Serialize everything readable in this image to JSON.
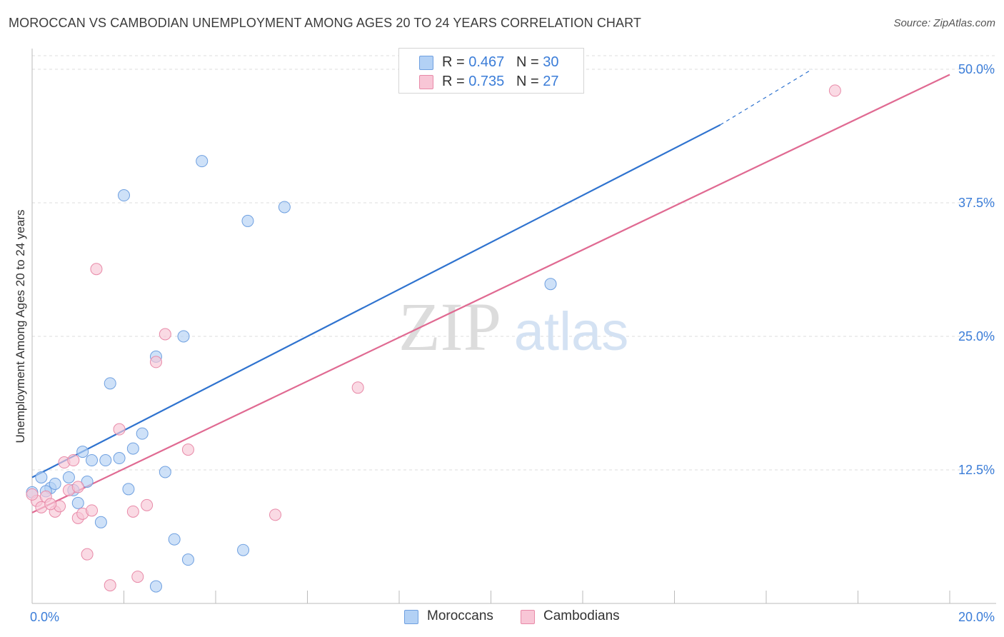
{
  "header": {
    "title": "MOROCCAN VS CAMBODIAN UNEMPLOYMENT AMONG AGES 20 TO 24 YEARS CORRELATION CHART",
    "source": "Source: ZipAtlas.com"
  },
  "watermark": {
    "zip": "ZIP",
    "atlas": "atlas"
  },
  "legend_top": {
    "rows": [
      {
        "r_label": "R = ",
        "r_value": "0.467",
        "n_label": "N = ",
        "n_value": "30",
        "color": "#b3d1f5",
        "border": "#6fa0e0"
      },
      {
        "r_label": "R = ",
        "r_value": "0.735",
        "n_label": "N = ",
        "n_value": "27",
        "color": "#f8c6d6",
        "border": "#e88aa8"
      }
    ]
  },
  "legend_bottom": {
    "items": [
      {
        "label": "Moroccans",
        "color": "#b3d1f5",
        "border": "#6fa0e0"
      },
      {
        "label": "Cambodians",
        "color": "#f8c6d6",
        "border": "#e88aa8"
      }
    ]
  },
  "chart_data": {
    "type": "scatter",
    "title": "MOROCCAN VS CAMBODIAN UNEMPLOYMENT AMONG AGES 20 TO 24 YEARS CORRELATION CHART",
    "xlabel": "",
    "ylabel": "Unemployment Among Ages 20 to 24 years",
    "xlim": [
      0,
      20
    ],
    "ylim": [
      0,
      50
    ],
    "x_tick_labels": [
      "0.0%",
      "20.0%"
    ],
    "y_ticks": [
      12.5,
      25.0,
      37.5,
      50.0
    ],
    "y_tick_labels": [
      "12.5%",
      "25.0%",
      "37.5%",
      "50.0%"
    ],
    "series": [
      {
        "name": "Moroccans",
        "color": "#6fa0e0",
        "fill": "#b3d1f5",
        "line_color": "#2f73cf",
        "points": [
          {
            "x": 0.2,
            "y": 11.8
          },
          {
            "x": 0.4,
            "y": 10.8
          },
          {
            "x": 0.5,
            "y": 11.2
          },
          {
            "x": 0.8,
            "y": 11.8
          },
          {
            "x": 0.9,
            "y": 10.6
          },
          {
            "x": 1.0,
            "y": 9.4
          },
          {
            "x": 1.1,
            "y": 14.2
          },
          {
            "x": 1.2,
            "y": 11.4
          },
          {
            "x": 1.3,
            "y": 13.4
          },
          {
            "x": 1.5,
            "y": 7.6
          },
          {
            "x": 1.6,
            "y": 13.4
          },
          {
            "x": 1.7,
            "y": 20.6
          },
          {
            "x": 1.9,
            "y": 13.6
          },
          {
            "x": 2.0,
            "y": 38.2
          },
          {
            "x": 2.1,
            "y": 10.7
          },
          {
            "x": 2.2,
            "y": 14.5
          },
          {
            "x": 2.4,
            "y": 15.9
          },
          {
            "x": 2.7,
            "y": 23.1
          },
          {
            "x": 2.7,
            "y": 1.6
          },
          {
            "x": 2.9,
            "y": 12.3
          },
          {
            "x": 3.1,
            "y": 6.0
          },
          {
            "x": 3.3,
            "y": 25.0
          },
          {
            "x": 3.4,
            "y": 4.1
          },
          {
            "x": 3.7,
            "y": 41.4
          },
          {
            "x": 4.6,
            "y": 5.0
          },
          {
            "x": 4.7,
            "y": 35.8
          },
          {
            "x": 5.5,
            "y": 37.1
          },
          {
            "x": 11.3,
            "y": 29.9
          },
          {
            "x": 0.0,
            "y": 10.4
          },
          {
            "x": 0.3,
            "y": 10.5
          }
        ],
        "trend": {
          "x0": 0,
          "y0": 11.8,
          "x1": 15.0,
          "y1": 44.8,
          "dash_to": {
            "x": 17.0,
            "y": 50.0
          }
        }
      },
      {
        "name": "Cambodians",
        "color": "#e88aa8",
        "fill": "#f8c6d6",
        "line_color": "#e06a92",
        "points": [
          {
            "x": 0.1,
            "y": 9.6
          },
          {
            "x": 0.2,
            "y": 9.0
          },
          {
            "x": 0.3,
            "y": 10.0
          },
          {
            "x": 0.5,
            "y": 8.6
          },
          {
            "x": 0.6,
            "y": 9.1
          },
          {
            "x": 0.7,
            "y": 13.2
          },
          {
            "x": 0.8,
            "y": 10.6
          },
          {
            "x": 0.9,
            "y": 13.4
          },
          {
            "x": 1.0,
            "y": 10.9
          },
          {
            "x": 1.0,
            "y": 8.0
          },
          {
            "x": 1.1,
            "y": 8.4
          },
          {
            "x": 1.2,
            "y": 4.6
          },
          {
            "x": 1.3,
            "y": 8.7
          },
          {
            "x": 1.4,
            "y": 31.3
          },
          {
            "x": 1.7,
            "y": 1.7
          },
          {
            "x": 1.9,
            "y": 16.3
          },
          {
            "x": 2.2,
            "y": 8.6
          },
          {
            "x": 2.3,
            "y": 2.5
          },
          {
            "x": 2.5,
            "y": 9.2
          },
          {
            "x": 2.7,
            "y": 22.6
          },
          {
            "x": 2.9,
            "y": 25.2
          },
          {
            "x": 3.4,
            "y": 14.4
          },
          {
            "x": 5.3,
            "y": 8.3
          },
          {
            "x": 7.1,
            "y": 20.2
          },
          {
            "x": 17.5,
            "y": 48.0
          },
          {
            "x": 0.0,
            "y": 10.2
          },
          {
            "x": 0.4,
            "y": 9.3
          }
        ],
        "trend": {
          "x0": 0,
          "y0": 8.5,
          "x1": 20.0,
          "y1": 49.5
        }
      }
    ]
  }
}
